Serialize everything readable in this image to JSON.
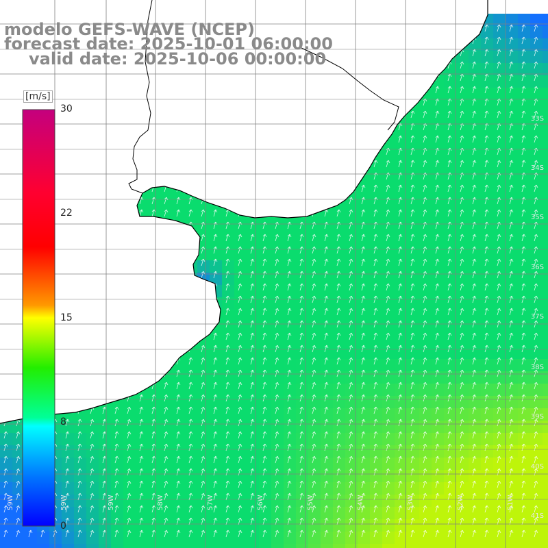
{
  "title": {
    "line1": "modelo GEFS-WAVE (NCEP)",
    "line2": "forecast date: 2025-10-01 06:00:00",
    "line3": "valid date: 2025-10-06 00:00:00"
  },
  "legend": {
    "unit": "[m/s]",
    "ticks": [
      "30",
      "22",
      "15",
      "8",
      "0"
    ],
    "tick_values": [
      30,
      22,
      15,
      8,
      0
    ],
    "colors": [
      "#cc0088",
      "#ff0000",
      "#ff6600",
      "#ffff00",
      "#00ff00",
      "#00ffff",
      "#0000ff"
    ]
  },
  "map": {
    "longitude_labels": [
      "59W",
      "58W",
      "57W",
      "56W",
      "55W",
      "54W",
      "53W",
      "52W",
      "51W"
    ],
    "latitude_labels": [
      "33S",
      "34S",
      "35S",
      "36S",
      "37S",
      "38S",
      "39S",
      "40S",
      "41S"
    ],
    "colors": {
      "land": "#ffffff",
      "coast": "#000000",
      "grid": "#808080",
      "low_speed": "#0a6cff",
      "mid_speed": "#00e070",
      "high_speed": "#c8f000"
    }
  }
}
